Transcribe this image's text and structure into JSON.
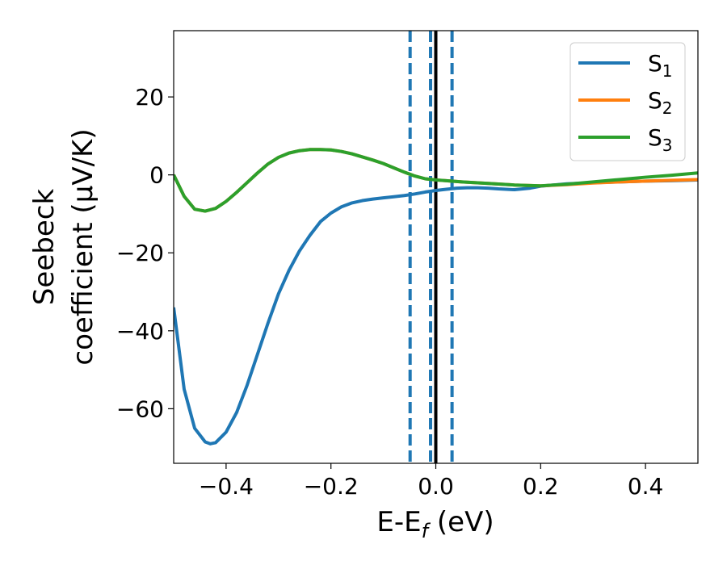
{
  "chart_data": {
    "type": "line",
    "xlabel": "E-E",
    "xlabel_sub": "f",
    "xlabel_unit": " (eV)",
    "ylabel_line1": "Seebeck",
    "ylabel_line2": "coefficient  (μV/K)",
    "xlim": [
      -0.5,
      0.5
    ],
    "ylim": [
      -74,
      37
    ],
    "x_ticks": [
      -0.4,
      -0.2,
      0.0,
      0.2,
      0.4
    ],
    "x_tick_labels": [
      "−0.4",
      "−0.2",
      "0.0",
      "0.2",
      "0.4"
    ],
    "y_ticks": [
      20,
      0,
      -20,
      -40,
      -60
    ],
    "y_tick_labels": [
      "20",
      "0",
      "−20",
      "−40",
      "−60"
    ],
    "grid": false,
    "legend_placement": "top-right",
    "series": [
      {
        "name": "S",
        "name_sub": "1",
        "color": "#1f77b4",
        "x": [
          -0.5,
          -0.48,
          -0.46,
          -0.44,
          -0.43,
          -0.42,
          -0.4,
          -0.38,
          -0.36,
          -0.34,
          -0.32,
          -0.3,
          -0.28,
          -0.26,
          -0.24,
          -0.22,
          -0.2,
          -0.18,
          -0.16,
          -0.14,
          -0.12,
          -0.1,
          -0.08,
          -0.06,
          -0.04,
          -0.02,
          0.0,
          0.02,
          0.04,
          0.06,
          0.08,
          0.1,
          0.12,
          0.15,
          0.18,
          0.2,
          0.25,
          0.3,
          0.35,
          0.4,
          0.45,
          0.5
        ],
        "y": [
          -34,
          -55,
          -65,
          -68.5,
          -69,
          -68.7,
          -66,
          -61,
          -54,
          -46,
          -38,
          -30.5,
          -24.5,
          -19.5,
          -15.5,
          -12,
          -9.8,
          -8.2,
          -7.2,
          -6.6,
          -6.2,
          -5.9,
          -5.6,
          -5.3,
          -4.9,
          -4.4,
          -4.0,
          -3.7,
          -3.4,
          -3.3,
          -3.3,
          -3.4,
          -3.6,
          -3.8,
          -3.4,
          -2.9,
          -2.3,
          -2.0,
          -1.8,
          -1.6,
          -1.5,
          -1.3
        ]
      },
      {
        "name": "S",
        "name_sub": "2",
        "color": "#ff7f0e",
        "x": [
          -0.5,
          -0.48,
          -0.46,
          -0.44,
          -0.42,
          -0.4,
          -0.38,
          -0.36,
          -0.34,
          -0.32,
          -0.3,
          -0.28,
          -0.26,
          -0.24,
          -0.22,
          -0.2,
          -0.18,
          -0.16,
          -0.14,
          -0.12,
          -0.1,
          -0.08,
          -0.06,
          -0.04,
          -0.02,
          0.0,
          0.02,
          0.05,
          0.1,
          0.15,
          0.2,
          0.25,
          0.3,
          0.35,
          0.4,
          0.45,
          0.5
        ],
        "y": [
          0,
          -5.5,
          -8.8,
          -9.3,
          -8.6,
          -6.8,
          -4.5,
          -2.0,
          0.5,
          2.8,
          4.5,
          5.6,
          6.2,
          6.5,
          6.5,
          6.4,
          6.0,
          5.4,
          4.6,
          3.8,
          2.9,
          1.8,
          0.7,
          -0.3,
          -1.0,
          -1.3,
          -1.5,
          -1.8,
          -2.2,
          -2.6,
          -2.8,
          -2.5,
          -2.1,
          -1.8,
          -1.6,
          -1.4,
          -1.2
        ]
      },
      {
        "name": "S",
        "name_sub": "3",
        "color": "#2ca02c",
        "x": [
          -0.5,
          -0.48,
          -0.46,
          -0.44,
          -0.42,
          -0.4,
          -0.38,
          -0.36,
          -0.34,
          -0.32,
          -0.3,
          -0.28,
          -0.26,
          -0.24,
          -0.22,
          -0.2,
          -0.18,
          -0.16,
          -0.14,
          -0.12,
          -0.1,
          -0.08,
          -0.06,
          -0.04,
          -0.02,
          0.0,
          0.02,
          0.05,
          0.1,
          0.15,
          0.2,
          0.25,
          0.3,
          0.35,
          0.4,
          0.45,
          0.5
        ],
        "y": [
          0,
          -5.5,
          -8.8,
          -9.3,
          -8.6,
          -6.8,
          -4.5,
          -2.0,
          0.5,
          2.8,
          4.5,
          5.6,
          6.2,
          6.5,
          6.5,
          6.4,
          6.0,
          5.4,
          4.6,
          3.8,
          2.9,
          1.8,
          0.7,
          -0.3,
          -1.0,
          -1.3,
          -1.5,
          -1.8,
          -2.2,
          -2.6,
          -2.8,
          -2.4,
          -1.8,
          -1.2,
          -0.6,
          -0.1,
          0.5
        ]
      }
    ],
    "vertical_lines": [
      {
        "x": -0.049,
        "style": "dashed",
        "color": "#1f77b4"
      },
      {
        "x": -0.01,
        "style": "dashed",
        "color": "#1f77b4"
      },
      {
        "x": 0.031,
        "style": "dashed",
        "color": "#1f77b4"
      },
      {
        "x": 0.0,
        "style": "solid",
        "color": "#000000"
      }
    ]
  }
}
